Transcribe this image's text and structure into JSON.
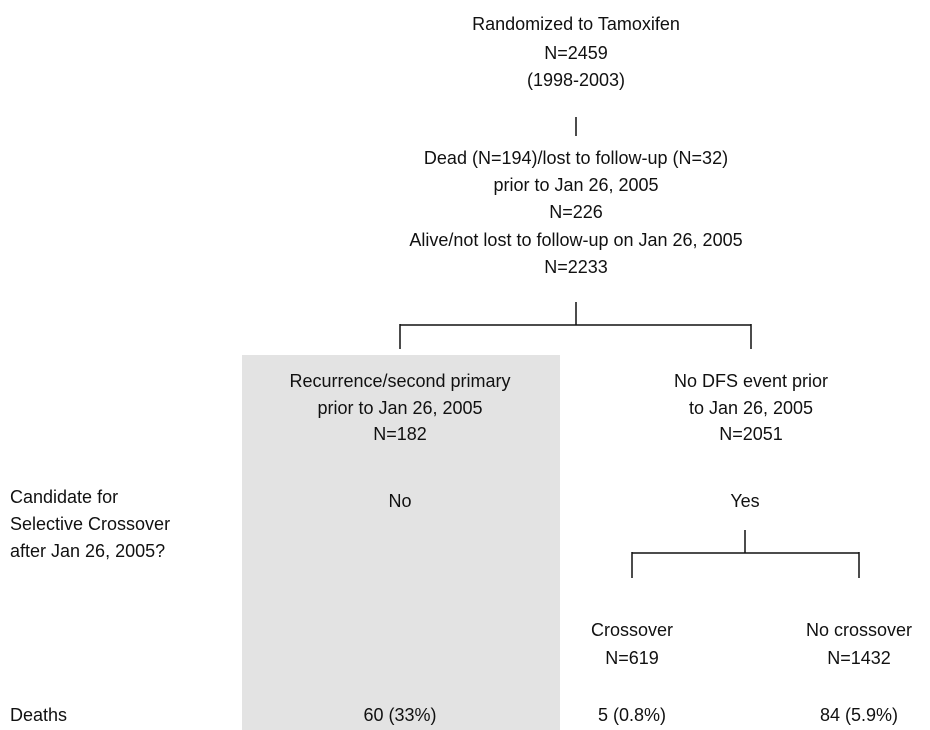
{
  "root": {
    "lines": [
      "Randomized to Tamoxifen",
      "N=2459",
      "(1998-2003)"
    ]
  },
  "excluded": {
    "lines": [
      "Dead (N=194)/lost to follow-up (N=32)",
      "prior to Jan 26, 2005",
      "N=226"
    ]
  },
  "remaining": {
    "lines": [
      "Alive/not lost to follow-up on Jan 26, 2005",
      "N=2233"
    ]
  },
  "branches": [
    {
      "lines": [
        "Recurrence/second primary",
        "prior to Jan 26, 2005",
        "N=182"
      ],
      "candidate": "No",
      "deaths": "60 (33%)"
    },
    {
      "lines": [
        "No DFS event prior",
        "to Jan 26, 2005",
        "N=2051"
      ],
      "candidate": "Yes"
    }
  ],
  "crossover_groups": [
    {
      "lines": [
        "Crossover",
        "N=619"
      ],
      "deaths": "5 (0.8%)"
    },
    {
      "lines": [
        "No crossover",
        "N=1432"
      ],
      "deaths": "84 (5.9%)"
    }
  ],
  "row_labels": {
    "candidate": [
      "Candidate for",
      "Selective Crossover",
      "after Jan 26, 2005?"
    ],
    "deaths": "Deaths"
  }
}
